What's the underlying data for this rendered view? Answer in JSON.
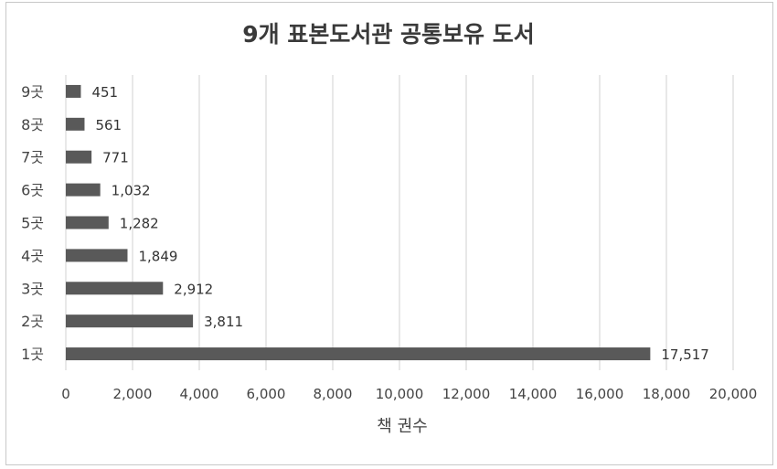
{
  "chart_data": {
    "type": "bar",
    "orientation": "horizontal",
    "title": "9개 표본도서관 공통보유 도서",
    "xlabel": "책 권수",
    "ylabel": "",
    "categories": [
      "1곳",
      "2곳",
      "3곳",
      "4곳",
      "5곳",
      "6곳",
      "7곳",
      "8곳",
      "9곳"
    ],
    "values": [
      17517,
      3811,
      2912,
      1849,
      1282,
      1032,
      771,
      561,
      451
    ],
    "value_labels": [
      "17,517",
      "3,811",
      "2,912",
      "1,849",
      "1,282",
      "1,032",
      "771",
      "561",
      "451"
    ],
    "xlim": [
      0,
      20000
    ],
    "xticks": [
      0,
      2000,
      4000,
      6000,
      8000,
      10000,
      12000,
      14000,
      16000,
      18000,
      20000
    ],
    "xtick_labels": [
      "0",
      "2,000",
      "4,000",
      "6,000",
      "8,000",
      "10,000",
      "12,000",
      "14,000",
      "16,000",
      "18,000",
      "20,000"
    ],
    "grid": "vertical",
    "legend": "none",
    "bar_color": "#595959",
    "grid_color": "#d9d9d9"
  }
}
